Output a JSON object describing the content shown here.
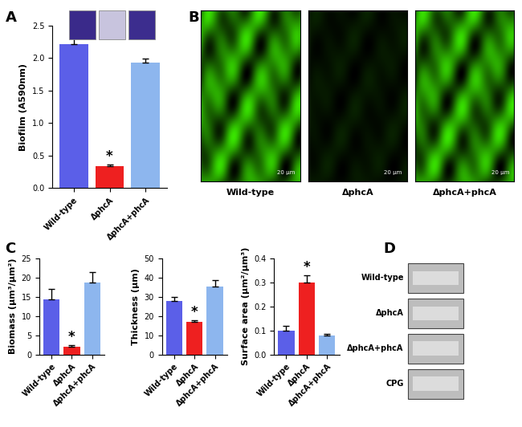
{
  "chart_data": [
    {
      "type": "bar",
      "ylabel": "Biofilm (A590nm)",
      "categories": [
        "Wild-type",
        "ΔphcA",
        "ΔphcA+phcA"
      ],
      "values": [
        2.22,
        0.33,
        1.93
      ],
      "errors": [
        0.12,
        0.03,
        0.06
      ],
      "colors": [
        "#5b5fe8",
        "#ee2020",
        "#8db6ee"
      ],
      "ylim": [
        0,
        2.5
      ],
      "yticks": [
        0.0,
        0.5,
        1.0,
        1.5,
        2.0,
        2.5
      ],
      "annotations": [
        {
          "category": "ΔphcA",
          "text": "*"
        }
      ]
    },
    {
      "type": "bar",
      "ylabel": "Biomass (µm³/µm²)",
      "categories": [
        "Wild-type",
        "ΔphcA",
        "ΔphcA+phcA"
      ],
      "values": [
        14.3,
        2.0,
        18.7
      ],
      "errors": [
        2.7,
        0.4,
        2.7
      ],
      "colors": [
        "#5b5fe8",
        "#ee2020",
        "#8db6ee"
      ],
      "ylim": [
        0,
        25
      ],
      "yticks": [
        0,
        5,
        10,
        15,
        20,
        25
      ],
      "annotations": [
        {
          "category": "ΔphcA",
          "text": "*"
        }
      ]
    },
    {
      "type": "bar",
      "ylabel": "Thickness (µm)",
      "categories": [
        "Wild-type",
        "ΔphcA",
        "ΔphcA+phcA"
      ],
      "values": [
        28.0,
        17.0,
        35.5
      ],
      "errors": [
        1.8,
        0.8,
        3.2
      ],
      "colors": [
        "#5b5fe8",
        "#ee2020",
        "#8db6ee"
      ],
      "ylim": [
        0,
        50
      ],
      "yticks": [
        0,
        10,
        20,
        30,
        40,
        50
      ],
      "annotations": [
        {
          "category": "ΔphcA",
          "text": "*"
        }
      ]
    },
    {
      "type": "bar",
      "ylabel": "Surface area (µm²/µm³)",
      "categories": [
        "Wild-type",
        "ΔphcA",
        "ΔphcA+phcA"
      ],
      "values": [
        0.1,
        0.3,
        0.078
      ],
      "errors": [
        0.018,
        0.028,
        0.008
      ],
      "colors": [
        "#5b5fe8",
        "#ee2020",
        "#8db6ee"
      ],
      "ylim": [
        0,
        0.4
      ],
      "yticks": [
        0.0,
        0.1,
        0.2,
        0.3,
        0.4
      ],
      "annotations": [
        {
          "category": "ΔphcA",
          "text": "*"
        }
      ]
    }
  ],
  "panel_labels": [
    "A",
    "B",
    "C",
    "D"
  ],
  "images": {
    "B": {
      "labels": [
        "Wild-type",
        "ΔphcA",
        "ΔphcA+phcA"
      ],
      "scale_bar": "20 µm"
    },
    "D": {
      "labels": [
        "Wild-type",
        "ΔphcA",
        "ΔphcA+phcA",
        "CPG"
      ]
    }
  }
}
